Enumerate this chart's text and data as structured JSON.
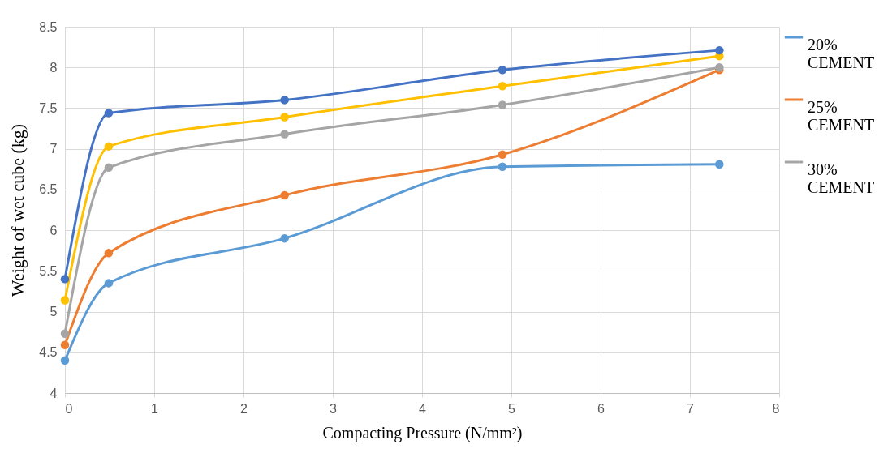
{
  "chart_data": {
    "type": "line",
    "xlabel": "Compacting Pressure (N/mm²)",
    "ylabel": "Weight of wet cube (kg)",
    "x": [
      0,
      0.49,
      2.46,
      4.9,
      7.33
    ],
    "xlim": [
      0,
      8
    ],
    "xticks": [
      0,
      1,
      2,
      3,
      4,
      5,
      6,
      7,
      8
    ],
    "ylim": [
      4,
      8.5
    ],
    "yticks": [
      4,
      4.5,
      5,
      5.5,
      6,
      6.5,
      7,
      7.5,
      8,
      8.5
    ],
    "grid": true,
    "legend": "right",
    "marker": "circle",
    "line_style": "solid",
    "series": [
      {
        "name": "20% CEMENT",
        "color": "#5b9bd5",
        "values": [
          4.4,
          5.35,
          5.9,
          6.78,
          6.81
        ]
      },
      {
        "name": "25% CEMENT",
        "color": "#ed7d31",
        "values": [
          4.59,
          5.72,
          6.43,
          6.93,
          7.97
        ]
      },
      {
        "name": "30% CEMENT",
        "color": "#a5a5a5",
        "values": [
          4.73,
          6.77,
          7.18,
          7.54,
          8.0
        ]
      },
      {
        "color": "#ffc000",
        "values": [
          5.14,
          7.03,
          7.39,
          7.77,
          8.14
        ]
      },
      {
        "color": "#4472c4",
        "values": [
          5.4,
          7.44,
          7.6,
          7.97,
          8.21
        ]
      }
    ]
  }
}
